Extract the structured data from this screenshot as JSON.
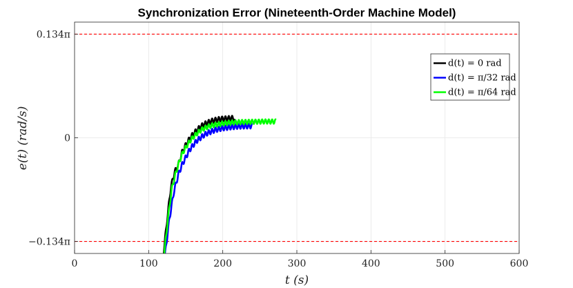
{
  "chart_data": {
    "type": "line",
    "title": "Synchronization Error (Nineteenth-Order Machine Model)",
    "xlabel": "t (s)",
    "ylabel": "e(t) (rad/s)",
    "xlim": [
      0,
      600
    ],
    "ylim": [
      -0.47,
      0.47
    ],
    "xticks": [
      0,
      100,
      200,
      300,
      400,
      500,
      600
    ],
    "xtick_labels": [
      "0",
      "100",
      "200",
      "300",
      "400",
      "500",
      "600"
    ],
    "yticks": [
      0.421,
      0,
      -0.421
    ],
    "ytick_labels": [
      "0.134π",
      "0",
      "−0.134π"
    ],
    "grid": true,
    "legend_position": "top-right",
    "reference_lines": [
      {
        "y": 0.421,
        "color": "#ff0000",
        "style": "dashed"
      },
      {
        "y": -0.421,
        "color": "#ff0000",
        "style": "dashed"
      }
    ],
    "series": [
      {
        "name": "d(t) = 0 rad",
        "color": "#000000",
        "x_start": 119,
        "x_end": 216,
        "trend": [
          [
            119,
            -0.5
          ],
          [
            125,
            -0.33
          ],
          [
            130,
            -0.2
          ],
          [
            135,
            -0.14
          ],
          [
            140,
            -0.11
          ],
          [
            145,
            -0.06
          ],
          [
            150,
            -0.03
          ],
          [
            155,
            -0.005
          ],
          [
            160,
            0.015
          ],
          [
            165,
            0.03
          ],
          [
            170,
            0.045
          ],
          [
            175,
            0.055
          ],
          [
            180,
            0.062
          ],
          [
            185,
            0.068
          ],
          [
            190,
            0.072
          ],
          [
            195,
            0.075
          ],
          [
            200,
            0.077
          ],
          [
            205,
            0.078
          ],
          [
            210,
            0.079
          ],
          [
            216,
            0.08
          ]
        ],
        "oscillation_amplitude": 0.01,
        "oscillation_period": 4.5
      },
      {
        "name": "d(t) = π/32 rad",
        "color": "#0000ff",
        "x_start": 121,
        "x_end": 240,
        "trend": [
          [
            121,
            -0.5
          ],
          [
            128,
            -0.33
          ],
          [
            134,
            -0.22
          ],
          [
            140,
            -0.15
          ],
          [
            145,
            -0.11
          ],
          [
            150,
            -0.08
          ],
          [
            155,
            -0.05
          ],
          [
            160,
            -0.03
          ],
          [
            165,
            -0.012
          ],
          [
            170,
            0.0
          ],
          [
            175,
            0.012
          ],
          [
            180,
            0.02
          ],
          [
            190,
            0.032
          ],
          [
            200,
            0.039
          ],
          [
            210,
            0.043
          ],
          [
            220,
            0.046
          ],
          [
            230,
            0.047
          ],
          [
            240,
            0.048
          ]
        ],
        "oscillation_amplitude": 0.01,
        "oscillation_period": 4.5
      },
      {
        "name": "d(t) = π/64 rad",
        "color": "#00ff00",
        "x_start": 120,
        "x_end": 272,
        "trend": [
          [
            120,
            -0.5
          ],
          [
            126,
            -0.33
          ],
          [
            131,
            -0.21
          ],
          [
            136,
            -0.15
          ],
          [
            141,
            -0.1
          ],
          [
            146,
            -0.06
          ],
          [
            151,
            -0.035
          ],
          [
            156,
            -0.012
          ],
          [
            161,
            0.005
          ],
          [
            166,
            0.02
          ],
          [
            171,
            0.032
          ],
          [
            176,
            0.04
          ],
          [
            183,
            0.048
          ],
          [
            190,
            0.053
          ],
          [
            200,
            0.058
          ],
          [
            212,
            0.062
          ],
          [
            225,
            0.064
          ],
          [
            240,
            0.065
          ],
          [
            256,
            0.066
          ],
          [
            272,
            0.066
          ]
        ],
        "oscillation_amplitude": 0.009,
        "oscillation_period": 4.5
      }
    ]
  }
}
